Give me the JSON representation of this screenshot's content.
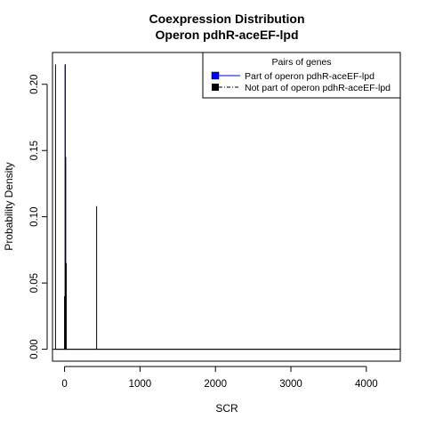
{
  "chart_data": {
    "type": "line",
    "title": [
      "Coexpression Distribution",
      "Operon pdhR-aceEF-lpd"
    ],
    "xlabel": "SCR",
    "ylabel": "Probability Density",
    "xlim": [
      -160,
      4450
    ],
    "ylim": [
      -0.009,
      0.224
    ],
    "xticks": [
      0,
      1000,
      2000,
      3000,
      4000
    ],
    "xtick_labels": [
      "0",
      "1000",
      "2000",
      "3000",
      "4000"
    ],
    "yticks": [
      0.0,
      0.05,
      0.1,
      0.15,
      0.2
    ],
    "ytick_labels": [
      "0.00",
      "0.05",
      "0.10",
      "0.15",
      "0.20"
    ],
    "grid": false,
    "baseline": 0,
    "legend": {
      "title": "Pairs of genes",
      "placement": "top-right",
      "entries": [
        {
          "label": "Part of operon pdhR-aceEF-lpd",
          "color": "#0000ff",
          "line": "solid"
        },
        {
          "label": "Not part of operon pdhR-aceEF-lpd",
          "color": "#000000",
          "line": "dashdot"
        }
      ]
    },
    "series": [
      {
        "name": "Part of operon pdhR-aceEF-lpd",
        "color": "#0000ff",
        "x": [
          5,
          5,
          5,
          10,
          10,
          10,
          15,
          15,
          15,
          20,
          20,
          20
        ],
        "y": [
          0,
          0.04,
          0,
          0,
          0.215,
          0,
          0,
          0.145,
          0,
          0,
          0.065,
          0
        ]
      },
      {
        "name": "Not part of operon pdhR-aceEF-lpd",
        "color": "#000000",
        "x": [
          -120,
          -120,
          -120,
          0,
          0,
          0,
          7,
          7,
          7,
          14,
          14,
          14,
          22,
          22,
          22,
          425,
          425,
          425,
          4400
        ],
        "y": [
          0,
          0.215,
          0,
          0,
          0.04,
          0,
          0,
          0.215,
          0,
          0,
          0.145,
          0,
          0,
          0.065,
          0,
          0,
          0.108,
          0,
          0
        ]
      }
    ]
  }
}
